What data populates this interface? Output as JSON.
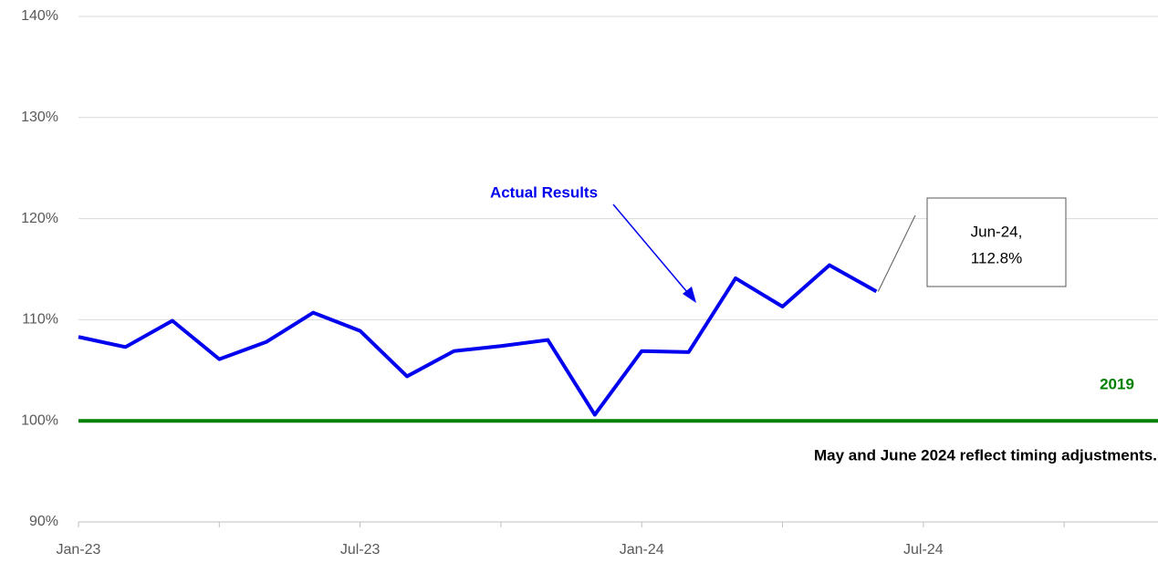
{
  "chart_data": {
    "type": "line",
    "categories": [
      "Jan-23",
      null,
      null,
      null,
      null,
      null,
      "Jul-23",
      null,
      null,
      null,
      null,
      null,
      "Jan-24",
      null,
      null,
      null,
      null,
      null,
      "Jul-24",
      null,
      null,
      null,
      null,
      null
    ],
    "series": [
      {
        "name": "Actual Results",
        "color": "#0000ee",
        "values": [
          108.3,
          107.3,
          109.9,
          106.1,
          107.8,
          110.7,
          108.9,
          104.4,
          106.9,
          107.4,
          108.0,
          100.6,
          106.9,
          106.8,
          114.1,
          111.3,
          115.4,
          112.8,
          null,
          null,
          null,
          null,
          null,
          null
        ],
        "value_labels": [
          null,
          null,
          null,
          null,
          null,
          null,
          null,
          null,
          null,
          null,
          null,
          null,
          null,
          null,
          null,
          null,
          null,
          "112.8%",
          null,
          null,
          null,
          null,
          null,
          null
        ]
      },
      {
        "name": "2019",
        "color": "#008000",
        "values": [
          100,
          100,
          100,
          100,
          100,
          100,
          100,
          100,
          100,
          100,
          100,
          100,
          100,
          100,
          100,
          100,
          100,
          100,
          100,
          100,
          100,
          100,
          100,
          100
        ]
      }
    ],
    "ylim": [
      90,
      140
    ],
    "yticks": [
      {
        "value": 90,
        "label": "90%"
      },
      {
        "value": 100,
        "label": "100%"
      },
      {
        "value": 110,
        "label": "110%"
      },
      {
        "value": 120,
        "label": "120%"
      },
      {
        "value": 130,
        "label": "130%"
      },
      {
        "value": 140,
        "label": "140%"
      }
    ],
    "grid": true,
    "annotations": [
      "Jun-24,",
      "May and June 2024 reflect timing adjustments."
    ]
  }
}
